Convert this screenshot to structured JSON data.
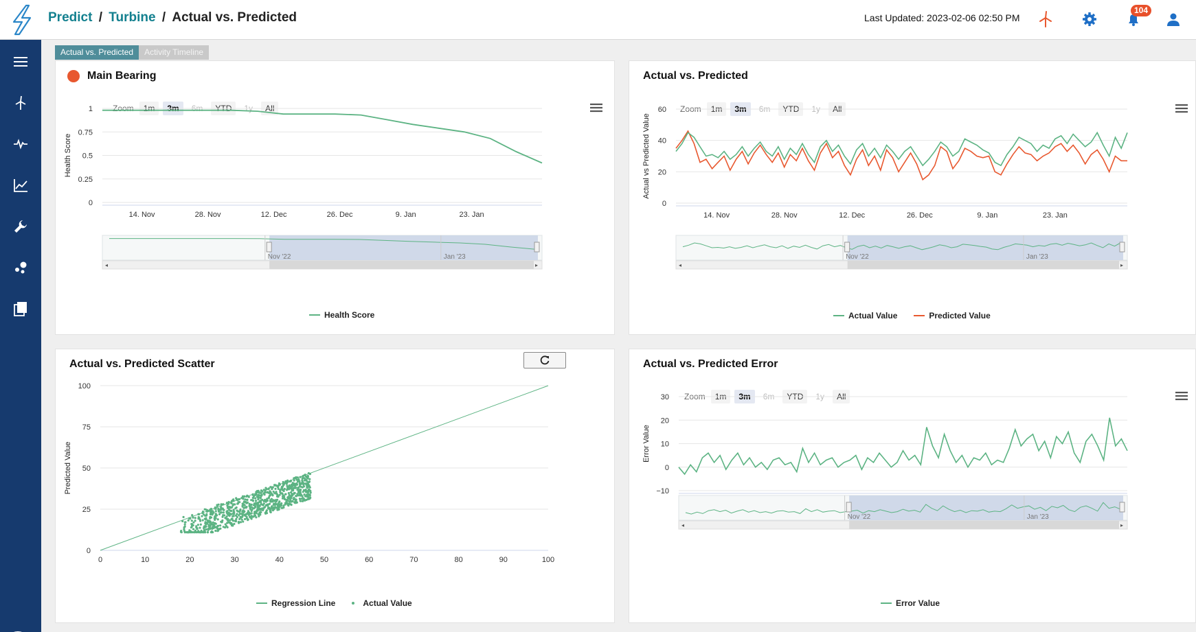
{
  "header": {
    "breadcrumb": [
      "Predict",
      "Turbine",
      "Actual vs. Predicted"
    ],
    "sep": "/",
    "last_updated": "Last Updated: 2023-02-06 02:50 PM",
    "notifications": "104",
    "icons": [
      "turbine-icon",
      "gear-icon",
      "bell-icon",
      "user-icon"
    ]
  },
  "sidebar": {
    "items": [
      "menu-icon",
      "turbine-icon",
      "pulse-icon",
      "chart-icon",
      "wrench-icon",
      "cluster-icon",
      "book-icon"
    ],
    "help": "?"
  },
  "tabs": [
    "Actual vs. Predicted",
    "Activity Timeline"
  ],
  "zoom": {
    "label": "Zoom",
    "buttons": [
      "1m",
      "3m",
      "6m",
      "YTD",
      "1y",
      "All"
    ],
    "selected": "3m",
    "disabled": [
      "6m",
      "1y"
    ]
  },
  "colors": {
    "green": "#5cb383",
    "red": "#e8582f",
    "navy": "#163a6e",
    "teal": "#13808f"
  },
  "xticks": [
    "14. Nov",
    "28. Nov",
    "12. Dec",
    "26. Dec",
    "9. Jan",
    "23. Jan"
  ],
  "navigator_labels": [
    "Nov '22",
    "Jan '23"
  ],
  "panels": {
    "health": {
      "title": "Main Bearing",
      "status_color": "#e8582f",
      "ylabel": "Health Score",
      "yticks": [
        "1",
        "0.75",
        "0.5",
        "0.25",
        "0"
      ],
      "legend": "Health Score"
    },
    "avp": {
      "title": "Actual vs. Predicted",
      "ylabel": "Actual vs Predicted Value",
      "yticks": [
        "60",
        "40",
        "20",
        "0"
      ],
      "legend": [
        "Actual Value",
        "Predicted Value"
      ]
    },
    "scatter": {
      "title": "Actual vs. Predicted Scatter",
      "ylabel": "Predicted Value",
      "yticks": [
        "100",
        "75",
        "50",
        "25",
        "0"
      ],
      "xticks": [
        "0",
        "10",
        "20",
        "30",
        "40",
        "50",
        "60",
        "70",
        "80",
        "90",
        "100"
      ],
      "legend": [
        "Regression Line",
        "Actual Value"
      ]
    },
    "error": {
      "title": "Actual vs. Predicted Error",
      "ylabel": "Error Value",
      "yticks": [
        "30",
        "20",
        "10",
        "0",
        "−10"
      ],
      "legend": "Error Value"
    }
  },
  "chart_data": [
    {
      "type": "line",
      "title": "Main Bearing",
      "ylabel": "Health Score",
      "ylim": [
        0,
        1
      ],
      "series": [
        {
          "name": "Health Score",
          "x": [
            "2022-11-06",
            "2022-11-13",
            "2022-11-20",
            "2022-11-27",
            "2022-12-04",
            "2022-12-11",
            "2022-12-18",
            "2022-12-22",
            "2022-12-25",
            "2023-01-01",
            "2023-01-05",
            "2023-01-10",
            "2023-01-15",
            "2023-01-20",
            "2023-01-24",
            "2023-01-28",
            "2023-02-01",
            "2023-02-06"
          ],
          "values": [
            0.98,
            0.98,
            0.98,
            0.98,
            0.98,
            0.98,
            0.97,
            0.94,
            0.94,
            0.94,
            0.93,
            0.88,
            0.83,
            0.79,
            0.75,
            0.68,
            0.54,
            0.42
          ]
        }
      ]
    },
    {
      "type": "line",
      "title": "Actual vs. Predicted",
      "ylabel": "Actual vs Predicted Value",
      "ylim": [
        0,
        60
      ],
      "series": [
        {
          "name": "Actual Value",
          "values": [
            33,
            38,
            45,
            42,
            36,
            30,
            31,
            29,
            33,
            28,
            31,
            36,
            30,
            35,
            39,
            33,
            30,
            36,
            28,
            35,
            31,
            38,
            31,
            26,
            36,
            40,
            33,
            37,
            30,
            25,
            34,
            38,
            30,
            35,
            29,
            37,
            33,
            28,
            33,
            36,
            30,
            24,
            28,
            33,
            39,
            36,
            30,
            33,
            41,
            39,
            37,
            34,
            32,
            26,
            24,
            31,
            36,
            42,
            40,
            38,
            33,
            37,
            35,
            41,
            43,
            38,
            44,
            40,
            36,
            39,
            45,
            37,
            30,
            42,
            35,
            45
          ]
        },
        {
          "name": "Predicted Value",
          "values": [
            35,
            40,
            46,
            38,
            26,
            28,
            22,
            26,
            30,
            21,
            28,
            33,
            25,
            32,
            37,
            31,
            26,
            32,
            23,
            31,
            27,
            35,
            27,
            21,
            32,
            38,
            29,
            33,
            24,
            18,
            28,
            34,
            24,
            30,
            21,
            34,
            29,
            20,
            26,
            32,
            25,
            15,
            18,
            24,
            36,
            33,
            22,
            27,
            35,
            33,
            30,
            29,
            30,
            20,
            18,
            25,
            31,
            36,
            32,
            31,
            27,
            30,
            32,
            36,
            38,
            33,
            37,
            32,
            25,
            31,
            34,
            28,
            20,
            30,
            27,
            27
          ]
        }
      ]
    },
    {
      "type": "scatter",
      "title": "Actual vs. Predicted Scatter",
      "xlabel": "",
      "ylabel": "Predicted Value",
      "xlim": [
        0,
        100
      ],
      "ylim": [
        0,
        100
      ],
      "series": [
        {
          "name": "Regression Line",
          "x": [
            0,
            100
          ],
          "y": [
            0,
            100
          ]
        },
        {
          "name": "Actual Value",
          "x_range": [
            17,
            47
          ],
          "y_range": [
            11,
            48
          ]
        }
      ]
    },
    {
      "type": "line",
      "title": "Actual vs. Predicted Error",
      "ylabel": "Error Value",
      "ylim": [
        -10,
        30
      ],
      "series": [
        {
          "name": "Error Value",
          "values": [
            0,
            -3,
            1,
            -2,
            4,
            6,
            2,
            5,
            -1,
            3,
            6,
            1,
            4,
            0,
            2,
            -1,
            3,
            4,
            1,
            2,
            -2,
            8,
            2,
            6,
            1,
            3,
            4,
            0,
            2,
            3,
            5,
            -1,
            4,
            2,
            6,
            3,
            0,
            2,
            7,
            3,
            5,
            1,
            17,
            9,
            4,
            14,
            7,
            2,
            5,
            0,
            4,
            3,
            6,
            1,
            3,
            2,
            8,
            16,
            9,
            12,
            14,
            7,
            11,
            4,
            13,
            10,
            15,
            6,
            2,
            11,
            14,
            9,
            3,
            21,
            9,
            12,
            7
          ]
        }
      ]
    }
  ]
}
